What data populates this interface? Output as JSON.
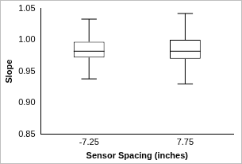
{
  "chart_data": {
    "type": "box",
    "x_label": "Sensor Spacing (inches)",
    "y_label": "Slope",
    "categories": [
      "-7.25",
      "7.75"
    ],
    "boxes": [
      {
        "min": 0.938,
        "q1": 0.972,
        "median": 0.982,
        "q3": 0.997,
        "max": 1.033
      },
      {
        "min": 0.93,
        "q1": 0.97,
        "median": 0.982,
        "q3": 1.0,
        "max": 1.042
      }
    ],
    "color": "#ffffff",
    "ylim": [
      0.85,
      1.05
    ],
    "yticks": [
      0.85,
      {
        "value": 0.9,
        "label": "0.90"
      },
      0.95,
      {
        "value": 1.0,
        "label": "1.00"
      },
      1.05
    ],
    "grid": false
  }
}
